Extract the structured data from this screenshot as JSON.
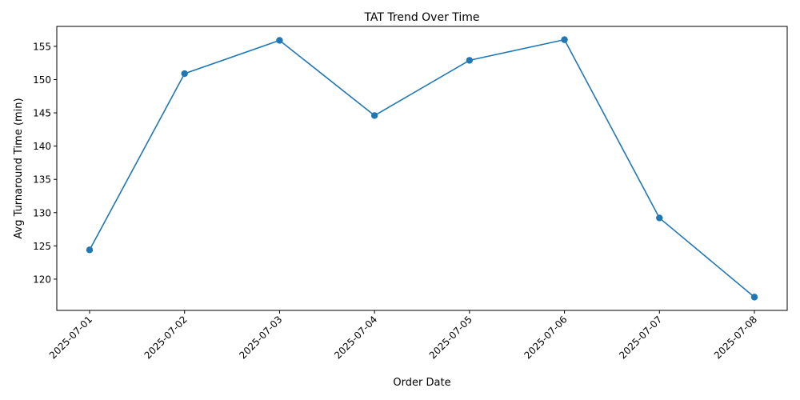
{
  "chart_data": {
    "type": "line",
    "title": "TAT Trend Over Time",
    "xlabel": "Order Date",
    "ylabel": "Avg Turnaround Time (min)",
    "x": [
      "2025-07-01",
      "2025-07-02",
      "2025-07-03",
      "2025-07-04",
      "2025-07-05",
      "2025-07-06",
      "2025-07-07",
      "2025-07-08"
    ],
    "series": [
      {
        "values": [
          124.4,
          150.9,
          155.9,
          144.6,
          152.9,
          156.0,
          129.2,
          117.3
        ],
        "color": "#1f77b4",
        "marker": "circle"
      }
    ],
    "yticks": [
      120,
      125,
      130,
      135,
      140,
      145,
      150,
      155
    ],
    "ylim": [
      115.3,
      158.0
    ],
    "x_tick_rotation": 45,
    "grid": false,
    "legend": "none"
  }
}
